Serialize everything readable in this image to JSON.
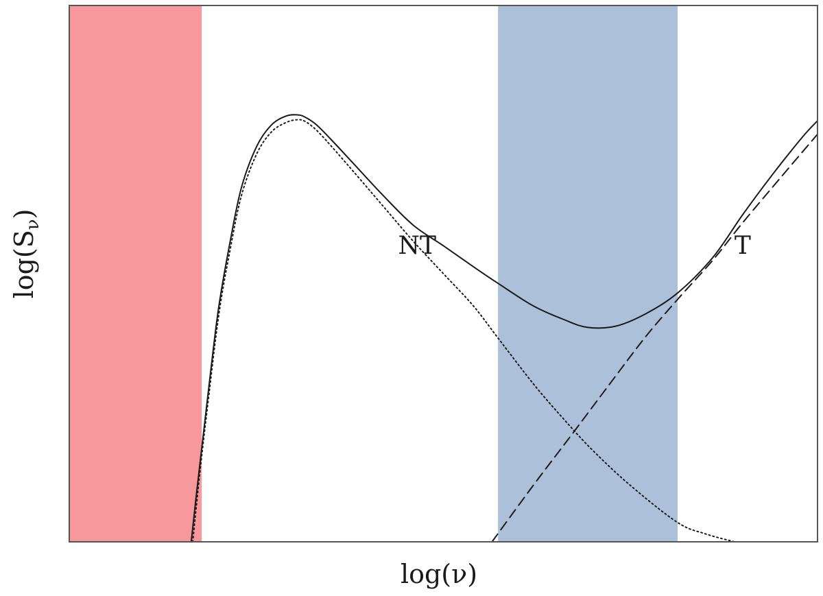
{
  "chart_data": {
    "type": "line",
    "title": "",
    "xlabel": "log(ν)",
    "ylabel_main": "log(S",
    "ylabel_sub": "ν",
    "ylabel_close": ")",
    "xlim": [
      0,
      10
    ],
    "ylim": [
      0,
      10
    ],
    "x_ticks": [],
    "y_ticks": [],
    "grid": false,
    "legend": "none",
    "shaded_bands": [
      {
        "name": "red-band",
        "x_range": [
          0,
          1.77
        ],
        "color": "#f7999c"
      },
      {
        "name": "blue-band",
        "x_range": [
          5.73,
          8.13
        ],
        "color": "#adc0da"
      }
    ],
    "series": [
      {
        "id": "total",
        "style": "solid",
        "color": "#1a1a1a",
        "x": [
          1.63,
          1.7,
          1.8,
          1.9,
          2.0,
          2.15,
          2.3,
          2.5,
          2.7,
          2.9,
          3.05,
          3.15,
          3.3,
          3.5,
          3.8,
          4.2,
          4.6,
          5.0,
          5.4,
          5.73,
          6.2,
          6.6,
          6.92,
          7.3,
          7.7,
          8.13,
          8.6,
          9.0,
          9.4,
          9.8,
          10.0
        ],
        "y": [
          0.0,
          0.9,
          2.1,
          3.3,
          4.4,
          5.6,
          6.6,
          7.36,
          7.77,
          7.94,
          7.96,
          7.92,
          7.78,
          7.5,
          7.05,
          6.45,
          5.9,
          5.52,
          5.13,
          4.82,
          4.4,
          4.15,
          4.0,
          4.02,
          4.25,
          4.64,
          5.3,
          6.1,
          6.85,
          7.55,
          7.85
        ]
      },
      {
        "id": "NT",
        "label": "NT",
        "style": "dotted",
        "color": "#1a1a1a",
        "x": [
          1.65,
          1.75,
          1.85,
          2.0,
          2.15,
          2.3,
          2.5,
          2.7,
          2.9,
          3.05,
          3.15,
          3.3,
          3.5,
          3.8,
          4.2,
          4.6,
          5.0,
          5.4,
          5.73,
          6.2,
          6.6,
          7.0,
          7.5,
          8.13,
          8.5,
          8.89
        ],
        "y": [
          0.0,
          1.35,
          2.55,
          4.25,
          5.45,
          6.45,
          7.22,
          7.64,
          7.82,
          7.87,
          7.84,
          7.68,
          7.38,
          6.9,
          6.25,
          5.6,
          5.0,
          4.4,
          3.8,
          2.95,
          2.3,
          1.7,
          1.05,
          0.36,
          0.15,
          0.0
        ]
      },
      {
        "id": "T",
        "label": "T",
        "style": "dashed",
        "color": "#1a1a1a",
        "x": [
          5.65,
          6.2,
          6.7,
          7.2,
          7.7,
          8.13,
          8.6,
          9.0,
          9.5,
          10.0
        ],
        "y": [
          0.0,
          1.05,
          1.97,
          2.9,
          3.82,
          4.52,
          5.25,
          5.95,
          6.78,
          7.6
        ]
      }
    ],
    "annotations": [
      {
        "text": "NT",
        "x": 4.65,
        "y": 5.37
      },
      {
        "text": "T",
        "x": 9.0,
        "y": 5.37
      }
    ]
  }
}
